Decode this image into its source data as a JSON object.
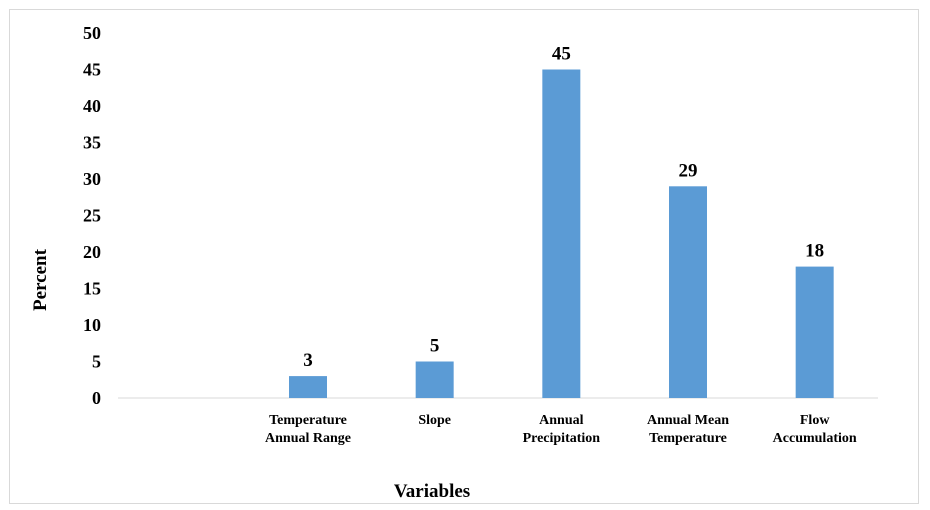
{
  "chart_data": {
    "type": "bar",
    "title": "",
    "xlabel": "Variables",
    "ylabel": "Percent",
    "ylim": [
      0,
      50
    ],
    "ytick_step": 5,
    "grid": false,
    "legend": "none",
    "bar_color": "#5b9bd5",
    "categories": [
      [
        "",
        ""
      ],
      [
        "Temperature",
        "Annual Range"
      ],
      [
        "Slope",
        ""
      ],
      [
        "Annual",
        "Precipitation"
      ],
      [
        "Annual Mean",
        "Temperature"
      ],
      [
        "Flow",
        "Accumulation"
      ]
    ],
    "values": [
      null,
      3,
      5,
      45,
      29,
      18
    ],
    "data_labels": [
      "",
      "3",
      "5",
      "45",
      "29",
      "18"
    ]
  }
}
